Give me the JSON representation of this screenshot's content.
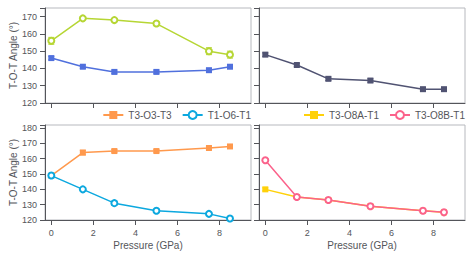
{
  "chart_data": [
    {
      "type": "line",
      "x": [
        0,
        1.5,
        3.0,
        5.0,
        7.5,
        8.5
      ],
      "series": [
        {
          "values": [
            146,
            141,
            138,
            138,
            139,
            141
          ],
          "yerr": [
            1,
            1,
            1,
            1,
            1,
            1
          ],
          "marker": "square"
        },
        {
          "values": [
            156,
            169,
            168,
            166,
            150,
            148
          ],
          "yerr": [
            2,
            1,
            1,
            1,
            2,
            2
          ],
          "marker": "open_circle"
        }
      ],
      "xlim": [
        -0.3,
        9.5
      ],
      "xticks": [
        0,
        2,
        4,
        6,
        8
      ],
      "ylim": [
        120,
        175
      ],
      "yticks": [
        120,
        130,
        140,
        150,
        160,
        170
      ],
      "ylabel": "T-O-T Angle (°)",
      "tick_labels": "y",
      "grid": false
    },
    {
      "type": "line",
      "x": [
        0,
        1.5,
        3.0,
        5.0,
        7.5,
        8.5
      ],
      "series": [
        {
          "values": [
            148,
            142,
            134,
            133,
            128,
            128
          ],
          "yerr": [
            1,
            1,
            1,
            1,
            1,
            1
          ],
          "marker": "square"
        }
      ],
      "xlim": [
        -0.3,
        9.5
      ],
      "xticks": [
        0,
        2,
        4,
        6,
        8
      ],
      "ylim": [
        120,
        175
      ],
      "yticks": [
        120,
        130,
        140,
        150,
        160,
        170
      ],
      "tick_labels": false,
      "grid": false
    },
    {
      "type": "line",
      "x": [
        0,
        1.5,
        3.0,
        5.0,
        7.5,
        8.5
      ],
      "series": [
        {
          "name": "T3-O3-T3",
          "values": [
            149,
            164,
            165,
            165,
            167,
            168
          ],
          "yerr": [
            1,
            1.5,
            1,
            1,
            1,
            1
          ],
          "marker": "square"
        },
        {
          "name": "T1-O6-T1",
          "values": [
            149,
            140,
            131,
            126,
            124,
            121
          ],
          "yerr": [
            1,
            1,
            1.5,
            1,
            1,
            1
          ],
          "marker": "open_circle"
        }
      ],
      "xlim": [
        -0.3,
        9.5
      ],
      "xticks": [
        0,
        2,
        4,
        6,
        8
      ],
      "ylim": [
        120,
        182
      ],
      "yticks": [
        120,
        130,
        140,
        150,
        160,
        170,
        180
      ],
      "xlabel": "Pressure (GPa)",
      "ylabel": "T-O-T Angle (°)",
      "legend": "top",
      "grid": false
    },
    {
      "type": "line",
      "x": [
        0,
        1.5,
        3.0,
        5.0,
        7.5,
        8.5
      ],
      "series": [
        {
          "name": "T3-O8A-T1",
          "values": [
            140,
            135,
            133,
            129,
            126,
            125
          ],
          "yerr": [
            1,
            1,
            1,
            1,
            1,
            1
          ],
          "marker": "square"
        },
        {
          "name": "T3-O8B-T1",
          "values": [
            159,
            135,
            133,
            129,
            126,
            125
          ],
          "yerr": [
            1,
            1,
            1,
            1,
            1,
            1
          ],
          "marker": "open_circle"
        }
      ],
      "xlim": [
        -0.3,
        9.5
      ],
      "xticks": [
        0,
        2,
        4,
        6,
        8
      ],
      "ylim": [
        120,
        182
      ],
      "yticks": [
        120,
        130,
        140,
        150,
        160,
        170,
        180
      ],
      "xlabel": "Pressure (GPa)",
      "tick_labels": "x",
      "legend": "top",
      "grid": false
    }
  ]
}
